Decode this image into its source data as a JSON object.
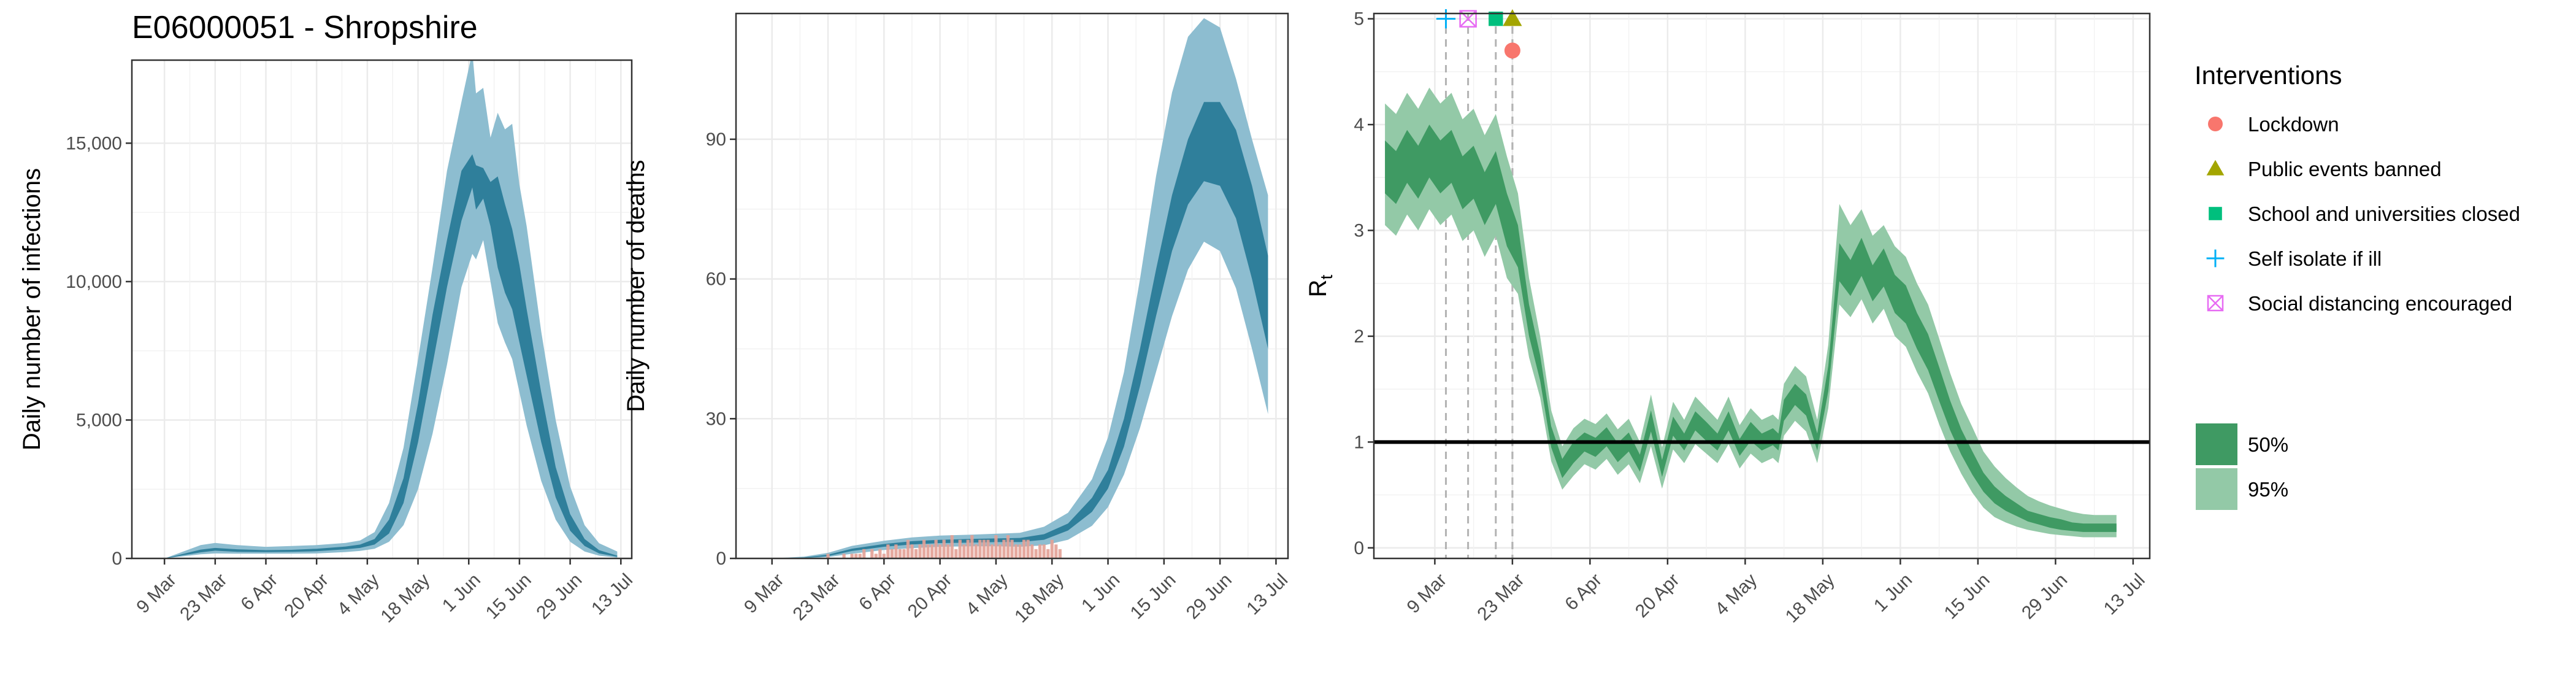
{
  "colors": {
    "infections_50": "#2f7f9b",
    "infections_95": "#8dbdd0",
    "deaths_50": "#2f7f9b",
    "deaths_95": "#8dbdd0",
    "rt_50": "#3f9a63",
    "rt_95": "#93c9a7",
    "observed_deaths": "#e3a196",
    "lockdown": "#F8766D",
    "public_events_banned": "#A3A500",
    "schools_closed": "#00BF7D",
    "self_isolate": "#00B0F6",
    "social_distancing": "#E76BF3",
    "grid": "#ebebeb",
    "frame": "#333333"
  },
  "chart_data": [
    {
      "id": "infections",
      "type": "area",
      "title": "E06000051 - Shropshire",
      "ylabel": "Daily number of infections",
      "xlabel": "",
      "x_start": "2020-02-29",
      "xlim_day": [
        1,
        139
      ],
      "ylim": [
        0,
        18000
      ],
      "yticks": [
        0,
        5000,
        10000,
        15000
      ],
      "ytick_labels": [
        "0",
        "5,000",
        "10,000",
        "15,000"
      ],
      "xticks_day": [
        10,
        24,
        38,
        52,
        66,
        80,
        94,
        108,
        122,
        136
      ],
      "xtick_labels": [
        "9 Mar",
        "23 Mar",
        "6 Apr",
        "20 Apr",
        "4 May",
        "18 May",
        "1 Jun",
        "15 Jun",
        "29 Jun",
        "13 Jul"
      ],
      "grid": true,
      "x": [
        10,
        20,
        24,
        30,
        38,
        45,
        52,
        60,
        64,
        68,
        72,
        76,
        80,
        84,
        88,
        92,
        95,
        96,
        98,
        100,
        102,
        104,
        106,
        108,
        110,
        114,
        118,
        122,
        126,
        130,
        135
      ],
      "lo95": [
        0,
        150,
        180,
        170,
        170,
        170,
        180,
        230,
        270,
        350,
        600,
        1200,
        2500,
        4500,
        7000,
        9800,
        11000,
        10800,
        11500,
        10000,
        8500,
        7800,
        7200,
        6000,
        4800,
        2800,
        1400,
        600,
        250,
        100,
        30
      ],
      "lo50": [
        0,
        220,
        280,
        240,
        230,
        240,
        260,
        330,
        380,
        500,
        900,
        2000,
        4200,
        7000,
        9800,
        12200,
        13400,
        12600,
        13000,
        12000,
        10500,
        9600,
        9000,
        7800,
        6600,
        4200,
        2200,
        1000,
        450,
        180,
        60
      ],
      "hi50": [
        0,
        320,
        380,
        330,
        300,
        310,
        350,
        430,
        500,
        700,
        1400,
        2900,
        5600,
        8800,
        11500,
        14000,
        14600,
        14200,
        14100,
        13600,
        13800,
        12800,
        11900,
        10600,
        9000,
        6000,
        3300,
        1600,
        700,
        300,
        100
      ],
      "hi95": [
        0,
        480,
        560,
        480,
        420,
        450,
        480,
        560,
        650,
        950,
        2000,
        4000,
        7200,
        10500,
        14000,
        16500,
        18300,
        16800,
        17000,
        15200,
        16100,
        15500,
        15700,
        13500,
        12000,
        8200,
        5000,
        2600,
        1200,
        550,
        250
      ]
    },
    {
      "id": "deaths",
      "type": "area",
      "title": "",
      "ylabel": "Daily number of deaths",
      "xlabel": "",
      "x_start": "2020-02-29",
      "xlim_day": [
        1,
        139
      ],
      "ylim": [
        0,
        117
      ],
      "yticks": [
        0,
        30,
        60,
        90
      ],
      "ytick_labels": [
        "0",
        "30",
        "60",
        "90"
      ],
      "xticks_day": [
        10,
        24,
        38,
        52,
        66,
        80,
        94,
        108,
        122,
        136
      ],
      "xtick_labels": [
        "9 Mar",
        "23 Mar",
        "6 Apr",
        "20 Apr",
        "4 May",
        "18 May",
        "1 Jun",
        "15 Jun",
        "29 Jun",
        "13 Jul"
      ],
      "grid": true,
      "x": [
        10,
        18,
        24,
        30,
        38,
        45,
        52,
        60,
        66,
        72,
        78,
        84,
        90,
        94,
        98,
        102,
        106,
        110,
        114,
        118,
        122,
        126,
        130,
        134
      ],
      "lo95": [
        0,
        0,
        0.3,
        1,
        1.8,
        2.2,
        2.5,
        2.6,
        2.6,
        2.5,
        2.8,
        4,
        7,
        11,
        18,
        28,
        40,
        52,
        62,
        68,
        66,
        58,
        45,
        31
      ],
      "lo50": [
        0,
        0.1,
        0.5,
        1.6,
        2.5,
        3,
        3.3,
        3.4,
        3.5,
        3.5,
        4,
        6,
        10,
        15,
        24,
        37,
        52,
        66,
        76,
        81,
        80,
        73,
        60,
        45
      ],
      "hi50": [
        0,
        0.2,
        0.8,
        2.1,
        3.1,
        3.7,
        4,
        4.2,
        4.3,
        4.4,
        5.2,
        7.5,
        13,
        19,
        30,
        45,
        62,
        78,
        90,
        98,
        98,
        92,
        80,
        65
      ],
      "hi95": [
        0,
        0.4,
        1.2,
        2.7,
        3.8,
        4.5,
        4.9,
        5.1,
        5.3,
        5.5,
        6.8,
        9.8,
        17,
        26,
        40,
        60,
        82,
        100,
        112,
        116,
        114,
        103,
        90,
        78
      ],
      "observed_x": [
        24,
        28,
        29,
        30,
        31,
        32,
        33,
        34,
        35,
        36,
        37,
        38,
        39,
        40,
        41,
        42,
        43,
        44,
        45,
        46,
        47,
        48,
        49,
        50,
        51,
        52,
        53,
        54,
        55,
        56,
        57,
        58,
        59,
        60,
        61,
        62,
        63,
        64,
        65,
        66,
        67,
        68,
        69,
        70,
        71,
        72,
        73,
        74,
        75,
        76,
        77,
        78,
        79,
        80,
        81,
        82
      ],
      "observed_y": [
        1,
        1,
        0,
        1,
        1,
        1,
        2,
        0,
        2,
        1,
        2,
        1,
        3,
        2,
        3,
        2,
        2,
        4,
        3,
        2,
        3,
        4,
        3,
        3,
        4,
        3,
        4,
        3,
        5,
        2,
        4,
        3,
        4,
        5,
        3,
        4,
        4,
        4,
        3,
        5,
        3,
        4,
        5,
        4,
        3,
        3,
        4,
        4,
        3,
        2,
        3,
        3,
        2,
        4,
        3,
        2
      ]
    },
    {
      "id": "rt",
      "type": "area",
      "title": "",
      "ylabel": "R",
      "ylabel_sub": "t",
      "xlabel": "",
      "x_start": "2020-02-29",
      "xlim_day": [
        -1,
        139
      ],
      "ylim": [
        -0.1,
        5.05
      ],
      "yticks": [
        0,
        1,
        2,
        3,
        4,
        5
      ],
      "ytick_labels": [
        "0",
        "1",
        "2",
        "3",
        "4",
        "5"
      ],
      "xticks_day": [
        10,
        24,
        38,
        52,
        66,
        80,
        94,
        108,
        122,
        136
      ],
      "xtick_labels": [
        "9 Mar",
        "23 Mar",
        "6 Apr",
        "20 Apr",
        "4 May",
        "18 May",
        "1 Jun",
        "15 Jun",
        "29 Jun",
        "13 Jul"
      ],
      "grid": true,
      "reference_line": 1,
      "x": [
        1,
        3,
        5,
        7,
        9,
        11,
        13,
        15,
        17,
        19,
        21,
        23,
        25,
        27,
        29,
        31,
        33,
        35,
        37,
        39,
        41,
        43,
        45,
        47,
        49,
        51,
        53,
        55,
        57,
        59,
        61,
        63,
        65,
        67,
        69,
        71,
        72,
        73,
        75,
        77,
        79,
        81,
        83,
        85,
        87,
        89,
        91,
        93,
        95,
        97,
        99,
        101,
        103,
        105,
        107,
        109,
        111,
        113,
        115,
        117,
        119,
        121,
        123,
        125,
        127,
        129,
        131,
        133
      ],
      "mid": [
        3.6,
        3.5,
        3.7,
        3.55,
        3.75,
        3.6,
        3.7,
        3.45,
        3.55,
        3.3,
        3.5,
        3.1,
        2.85,
        2.15,
        1.7,
        1.05,
        0.75,
        0.9,
        1.0,
        0.95,
        1.05,
        0.9,
        1.0,
        0.8,
        1.2,
        0.75,
        1.15,
        1.0,
        1.2,
        1.1,
        1.0,
        1.2,
        0.95,
        1.1,
        1.0,
        1.05,
        1.0,
        1.3,
        1.45,
        1.35,
        1.0,
        1.6,
        2.7,
        2.55,
        2.75,
        2.5,
        2.65,
        2.4,
        2.3,
        2.05,
        1.85,
        1.55,
        1.25,
        1.0,
        0.8,
        0.62,
        0.5,
        0.42,
        0.36,
        0.3,
        0.27,
        0.24,
        0.22,
        0.2,
        0.19,
        0.19,
        0.19,
        0.19
      ],
      "lo50": [
        3.35,
        3.25,
        3.45,
        3.3,
        3.5,
        3.35,
        3.45,
        3.2,
        3.3,
        3.05,
        3.25,
        2.85,
        2.65,
        2.0,
        1.58,
        0.95,
        0.66,
        0.8,
        0.91,
        0.86,
        0.96,
        0.81,
        0.91,
        0.72,
        1.1,
        0.67,
        1.06,
        0.92,
        1.11,
        1.01,
        0.92,
        1.11,
        0.87,
        1.01,
        0.92,
        0.97,
        0.92,
        1.2,
        1.35,
        1.25,
        0.92,
        1.48,
        2.52,
        2.38,
        2.57,
        2.33,
        2.47,
        2.22,
        2.12,
        1.88,
        1.68,
        1.39,
        1.11,
        0.88,
        0.69,
        0.53,
        0.42,
        0.35,
        0.3,
        0.25,
        0.22,
        0.19,
        0.17,
        0.16,
        0.15,
        0.15,
        0.15,
        0.15
      ],
      "hi50": [
        3.85,
        3.75,
        3.95,
        3.8,
        4.0,
        3.85,
        3.95,
        3.7,
        3.8,
        3.55,
        3.75,
        3.35,
        3.05,
        2.3,
        1.82,
        1.15,
        0.84,
        1.0,
        1.09,
        1.04,
        1.14,
        0.99,
        1.09,
        0.88,
        1.3,
        0.83,
        1.24,
        1.08,
        1.29,
        1.19,
        1.08,
        1.29,
        1.03,
        1.19,
        1.08,
        1.13,
        1.08,
        1.4,
        1.55,
        1.45,
        1.08,
        1.72,
        2.88,
        2.72,
        2.93,
        2.67,
        2.83,
        2.58,
        2.48,
        2.22,
        2.02,
        1.71,
        1.39,
        1.12,
        0.91,
        0.71,
        0.58,
        0.49,
        0.42,
        0.35,
        0.32,
        0.29,
        0.27,
        0.24,
        0.23,
        0.23,
        0.23,
        0.23
      ],
      "lo95": [
        3.05,
        2.95,
        3.15,
        3.0,
        3.2,
        3.05,
        3.15,
        2.9,
        3.0,
        2.75,
        2.95,
        2.55,
        2.4,
        1.8,
        1.42,
        0.82,
        0.55,
        0.68,
        0.79,
        0.74,
        0.84,
        0.69,
        0.79,
        0.61,
        0.96,
        0.56,
        0.93,
        0.8,
        0.98,
        0.89,
        0.8,
        0.98,
        0.75,
        0.89,
        0.8,
        0.85,
        0.8,
        1.06,
        1.2,
        1.1,
        0.8,
        1.32,
        2.3,
        2.18,
        2.35,
        2.12,
        2.26,
        2.0,
        1.9,
        1.66,
        1.46,
        1.17,
        0.91,
        0.7,
        0.52,
        0.38,
        0.29,
        0.24,
        0.2,
        0.17,
        0.15,
        0.13,
        0.12,
        0.11,
        0.1,
        0.1,
        0.1,
        0.1
      ],
      "hi95": [
        4.2,
        4.1,
        4.3,
        4.15,
        4.35,
        4.2,
        4.3,
        4.05,
        4.15,
        3.9,
        4.1,
        3.7,
        3.35,
        2.55,
        2.0,
        1.3,
        0.96,
        1.13,
        1.22,
        1.17,
        1.27,
        1.12,
        1.22,
        1.0,
        1.45,
        0.95,
        1.38,
        1.21,
        1.43,
        1.32,
        1.21,
        1.43,
        1.16,
        1.32,
        1.21,
        1.26,
        1.21,
        1.55,
        1.72,
        1.62,
        1.21,
        1.92,
        3.25,
        3.05,
        3.2,
        2.95,
        3.05,
        2.85,
        2.75,
        2.5,
        2.3,
        1.98,
        1.65,
        1.36,
        1.14,
        0.91,
        0.77,
        0.66,
        0.57,
        0.49,
        0.44,
        0.4,
        0.37,
        0.34,
        0.32,
        0.31,
        0.31,
        0.31
      ],
      "interventions": [
        {
          "name": "Self isolate if ill",
          "day": 12,
          "marker": "plus",
          "color_key": "self_isolate"
        },
        {
          "name": "Social distancing encouraged",
          "day": 16,
          "marker": "boxx",
          "color_key": "social_distancing"
        },
        {
          "name": "School and universities closed",
          "day": 21,
          "marker": "square",
          "color_key": "schools_closed"
        },
        {
          "name": "Public events banned",
          "day": 24,
          "marker": "triangle",
          "color_key": "public_events_banned"
        },
        {
          "name": "Lockdown",
          "day": 24,
          "marker": "circle",
          "color_key": "lockdown",
          "y": 4.7
        }
      ]
    }
  ],
  "legend": {
    "interventions_title": "Interventions",
    "interventions": [
      {
        "label": "Lockdown",
        "marker": "circle",
        "color_key": "lockdown"
      },
      {
        "label": "Public events banned",
        "marker": "triangle",
        "color_key": "public_events_banned"
      },
      {
        "label": "School and universities closed",
        "marker": "square",
        "color_key": "schools_closed"
      },
      {
        "label": "Self isolate if ill",
        "marker": "plus",
        "color_key": "self_isolate"
      },
      {
        "label": "Social distancing encouraged",
        "marker": "boxx",
        "color_key": "social_distancing"
      }
    ],
    "intervals": [
      {
        "label": "50%",
        "color_key": "rt_50"
      },
      {
        "label": "95%",
        "color_key": "rt_95"
      }
    ]
  }
}
